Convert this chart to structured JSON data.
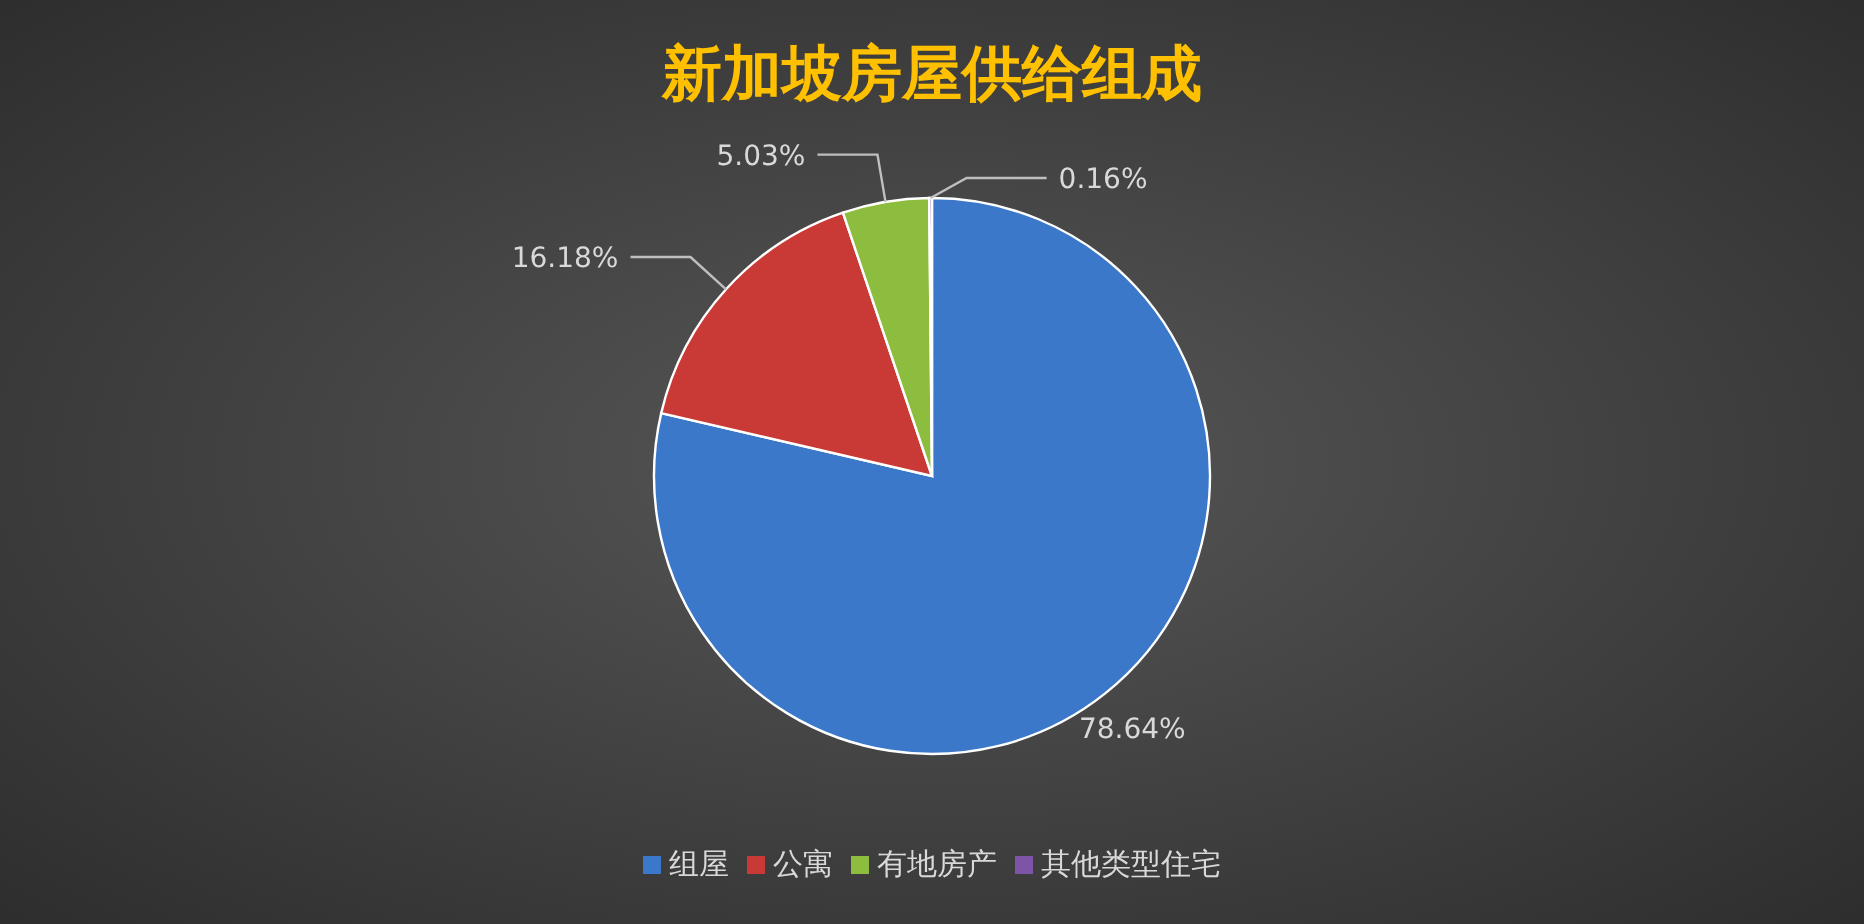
{
  "chart_data": {
    "type": "pie",
    "title": "新加坡房屋供给组成",
    "categories": [
      "组屋",
      "公寓",
      "有地房产",
      "其他类型住宅"
    ],
    "values": [
      78.64,
      16.18,
      5.03,
      0.16
    ],
    "colors": [
      "#3b78c9",
      "#c93a36",
      "#8dbd3e",
      "#7d54a6"
    ],
    "value_labels": [
      "78.64%",
      "16.18%",
      "5.03%",
      "0.16%"
    ],
    "legend": "bottom"
  }
}
